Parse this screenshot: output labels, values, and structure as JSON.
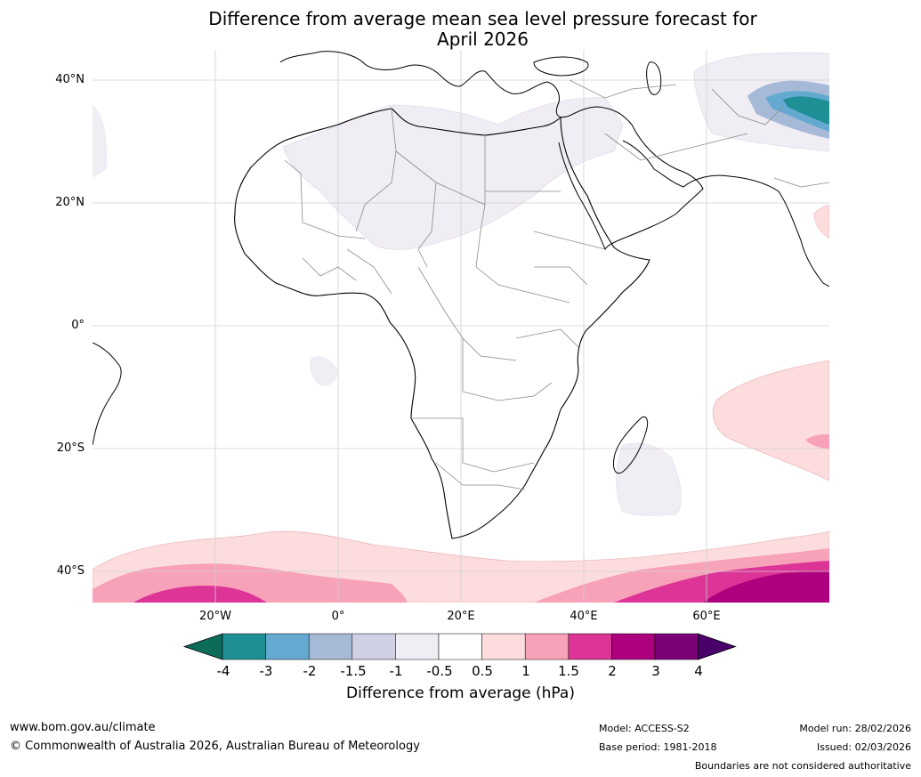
{
  "title": {
    "line1": "Difference from average mean sea level pressure forecast for",
    "line2": "April 2026"
  },
  "lat_labels": [
    "40°N",
    "20°N",
    "0°",
    "20°S",
    "40°S"
  ],
  "lon_labels": [
    "20°W",
    "0°",
    "20°E",
    "40°E",
    "60°E"
  ],
  "colorbar": {
    "ticks": [
      "-4",
      "-3",
      "-2",
      "-1.5",
      "-1",
      "-0.5",
      "0.5",
      "1",
      "1.5",
      "2",
      "3",
      "4"
    ],
    "colors": [
      "#0d6b5a",
      "#1f8f96",
      "#64a9cf",
      "#a6bad8",
      "#cfd0e3",
      "#f0edf4",
      "#ffffff",
      "#fcdcdd",
      "#f8a2ba",
      "#dd3497",
      "#ae017e",
      "#7a0177",
      "#49006a"
    ],
    "label": "Difference from average (hPa)"
  },
  "footer": {
    "url": "www.bom.gov.au/climate",
    "copyright": "© Commonwealth of Australia 2026, Australian Bureau of Meteorology",
    "model": "Model: ACCESS-S2",
    "base_period": "Base period: 1981-2018",
    "model_run": "Model run: 28/02/2026",
    "issued": "Issued: 02/03/2026",
    "disclaimer": "Boundaries are not considered authoritative"
  }
}
